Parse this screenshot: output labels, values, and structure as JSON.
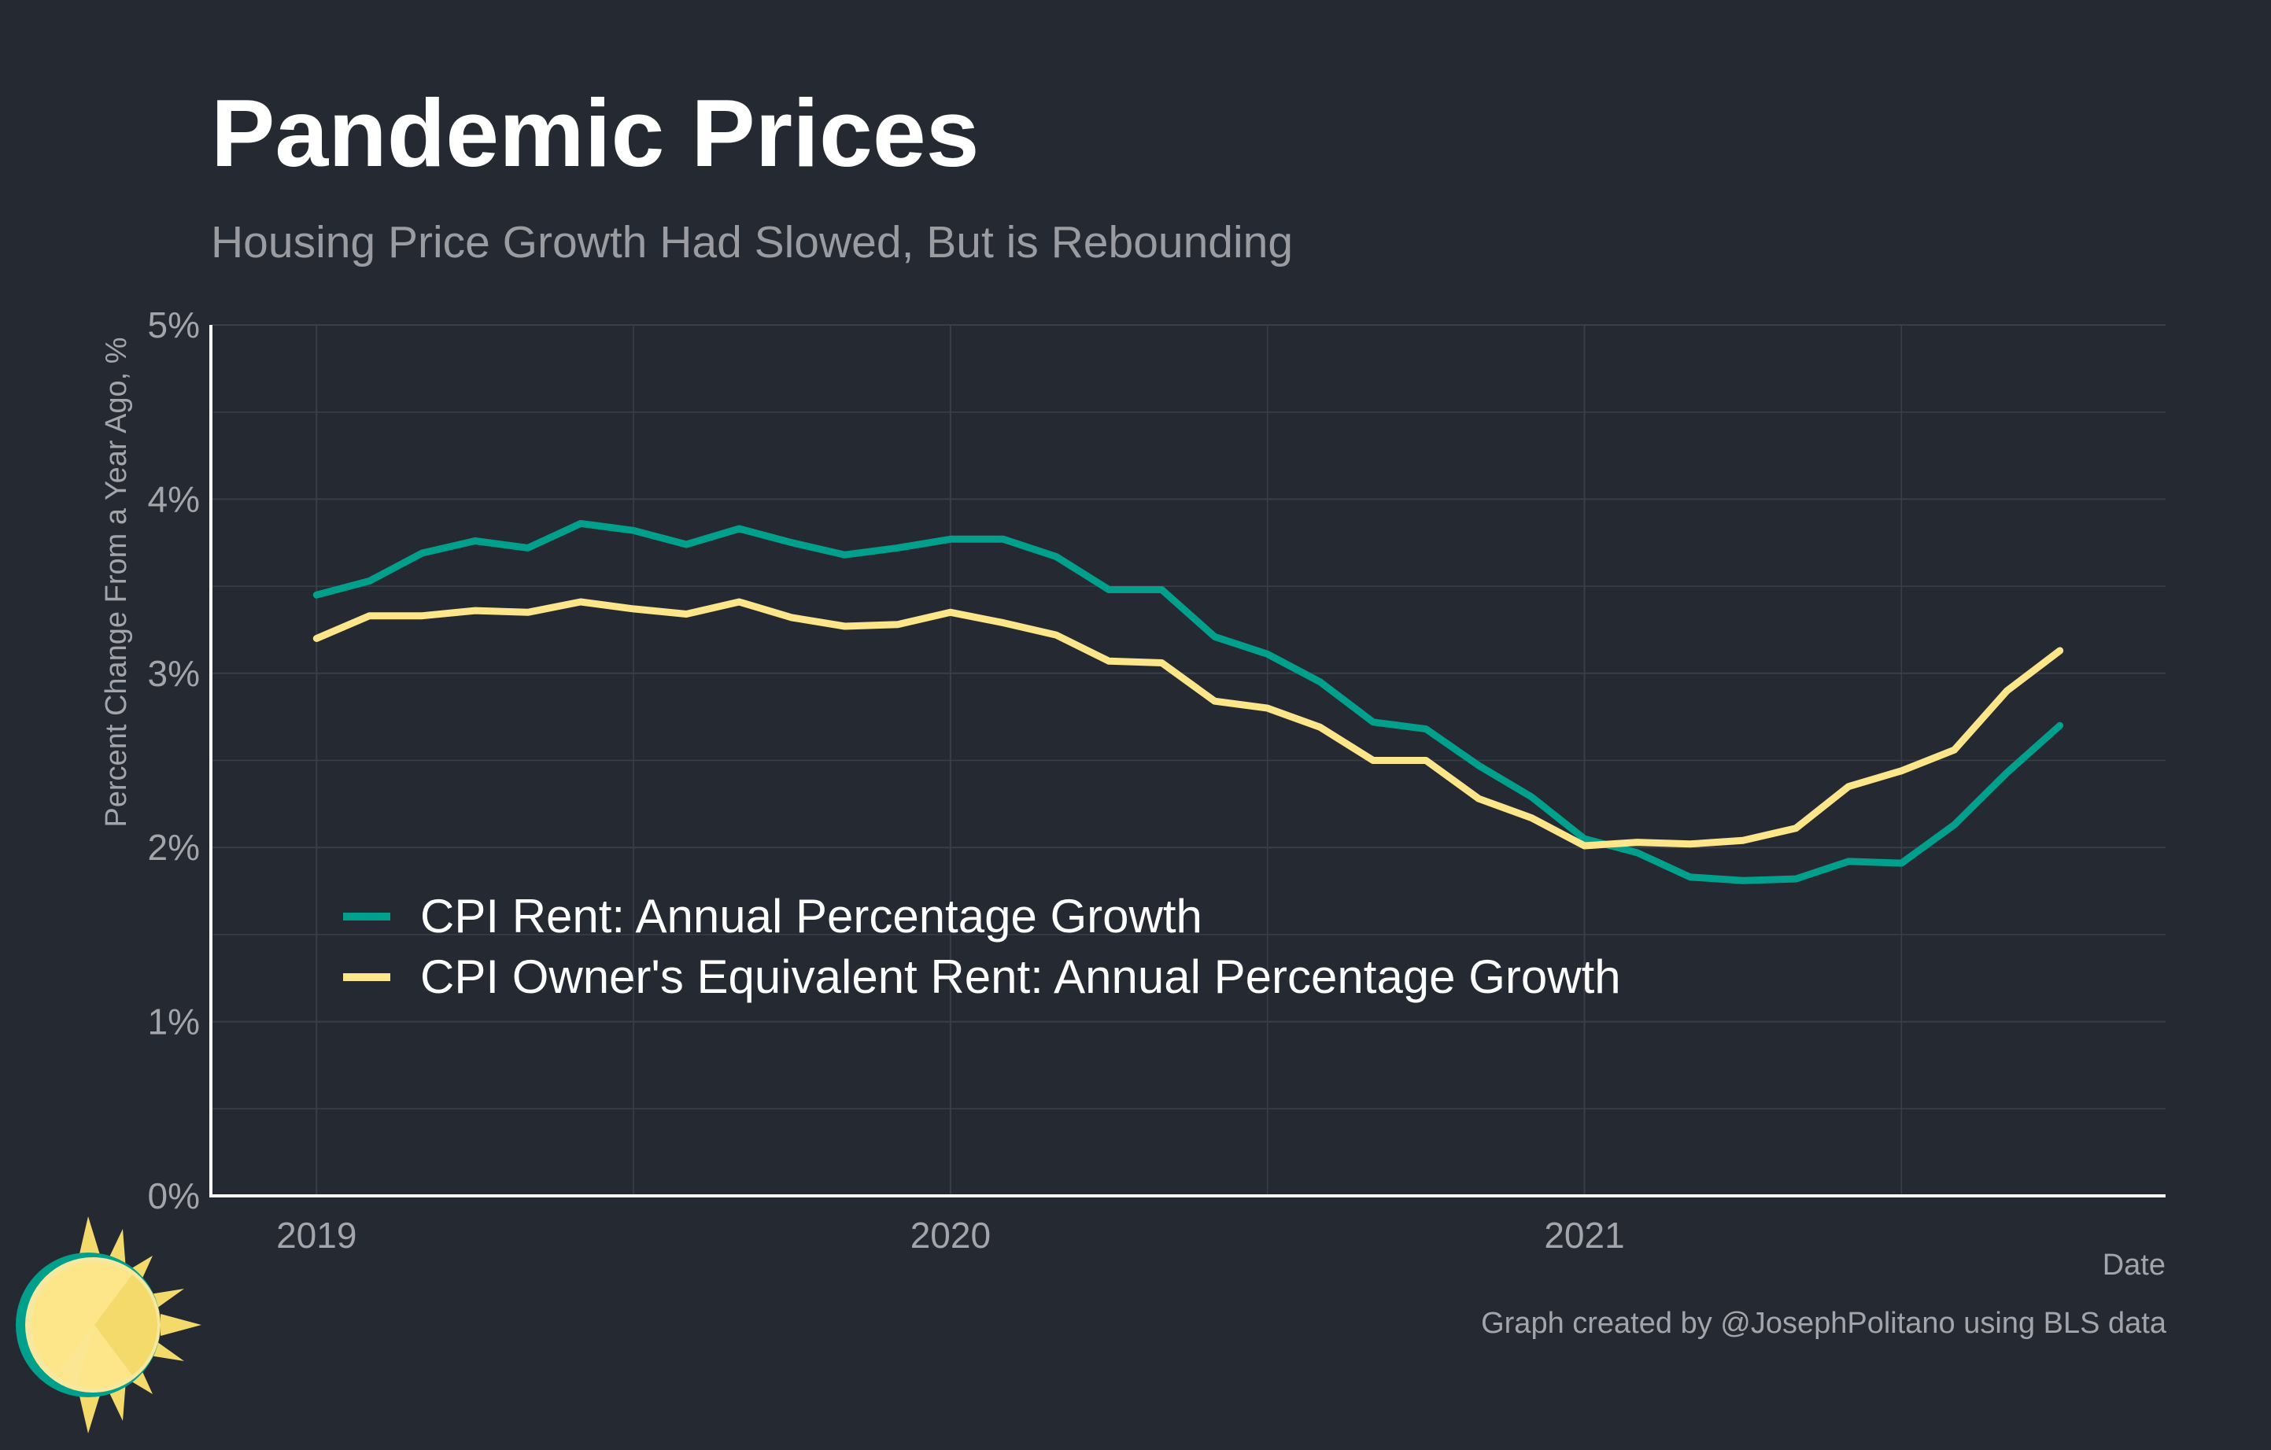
{
  "title": "Pandemic Prices",
  "subtitle": "Housing Price Growth Had Slowed, But is Rebounding",
  "caption": "Graph created by @JosephPolitano using BLS data",
  "colors": {
    "background": "#252932",
    "grid": "#3a3e46",
    "axis": "#ffffff",
    "tick_label": "#a3a5aa",
    "rent": "#00a08c",
    "oer": "#fde68a"
  },
  "chart_data": {
    "type": "line",
    "xlabel": "Date",
    "ylabel": "Percent Change From a Year Ago, %",
    "xlim": [
      "2018-11-01",
      "2021-12-01"
    ],
    "ylim": [
      0,
      5
    ],
    "x_ticks": [
      "2019",
      "2020",
      "2021"
    ],
    "y_ticks": [
      "0%",
      "1%",
      "2%",
      "3%",
      "4%",
      "5%"
    ],
    "grid": true,
    "legend_position": "lower-left inside plot",
    "x": [
      "2019-01",
      "2019-02",
      "2019-03",
      "2019-04",
      "2019-05",
      "2019-06",
      "2019-07",
      "2019-08",
      "2019-09",
      "2019-10",
      "2019-11",
      "2019-12",
      "2020-01",
      "2020-02",
      "2020-03",
      "2020-04",
      "2020-05",
      "2020-06",
      "2020-07",
      "2020-08",
      "2020-09",
      "2020-10",
      "2020-11",
      "2020-12",
      "2021-01",
      "2021-02",
      "2021-03",
      "2021-04",
      "2021-05",
      "2021-06",
      "2021-07",
      "2021-08",
      "2021-09",
      "2021-10"
    ],
    "series": [
      {
        "name": "CPI Rent: Annual Percentage Growth",
        "color": "#00a08c",
        "values": [
          3.45,
          3.53,
          3.69,
          3.76,
          3.72,
          3.86,
          3.82,
          3.74,
          3.83,
          3.75,
          3.68,
          3.72,
          3.77,
          3.77,
          3.67,
          3.48,
          3.48,
          3.21,
          3.11,
          2.95,
          2.72,
          2.68,
          2.47,
          2.29,
          2.05,
          1.97,
          1.83,
          1.81,
          1.82,
          1.92,
          1.91,
          2.13,
          2.43,
          2.7
        ]
      },
      {
        "name": "CPI Owner's Equivalent Rent: Annual Percentage Growth",
        "color": "#fde68a",
        "values": [
          3.2,
          3.33,
          3.33,
          3.36,
          3.35,
          3.41,
          3.37,
          3.34,
          3.41,
          3.32,
          3.27,
          3.28,
          3.35,
          3.29,
          3.22,
          3.07,
          3.06,
          2.84,
          2.8,
          2.69,
          2.5,
          2.5,
          2.28,
          2.17,
          2.01,
          2.03,
          2.02,
          2.04,
          2.11,
          2.35,
          2.44,
          2.56,
          2.9,
          3.13
        ]
      }
    ]
  }
}
